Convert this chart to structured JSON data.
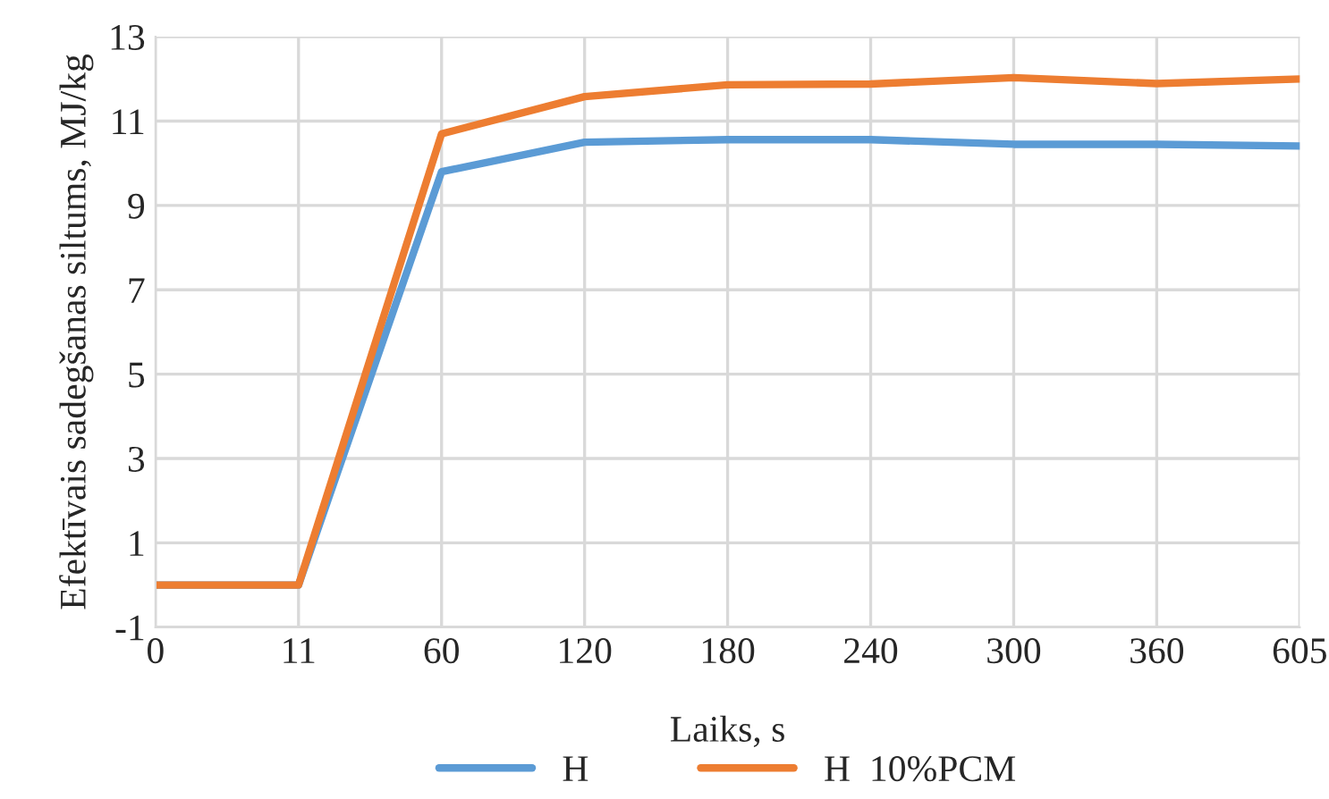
{
  "chart_data": {
    "type": "line",
    "xlabel": "Laiks, s",
    "ylabel": "Efektīvais sadegšanas siltums, MJ/kg",
    "categories": [
      "0",
      "11",
      "60",
      "120",
      "180",
      "240",
      "300",
      "360",
      "605"
    ],
    "series": [
      {
        "name": "H",
        "color": "#5b9bd5",
        "values": [
          0,
          0,
          9.8,
          10.5,
          10.56,
          10.56,
          10.45,
          10.45,
          10.41
        ]
      },
      {
        "name": "H  10%PCM",
        "color": "#ed7d31",
        "values": [
          0,
          0,
          10.7,
          11.58,
          11.86,
          11.88,
          12.03,
          11.89,
          12.0
        ]
      }
    ],
    "ylim": [
      -1,
      13
    ],
    "yticks": [
      -1,
      1,
      3,
      5,
      7,
      9,
      11,
      13
    ],
    "grid": true,
    "legend": "bottom"
  }
}
